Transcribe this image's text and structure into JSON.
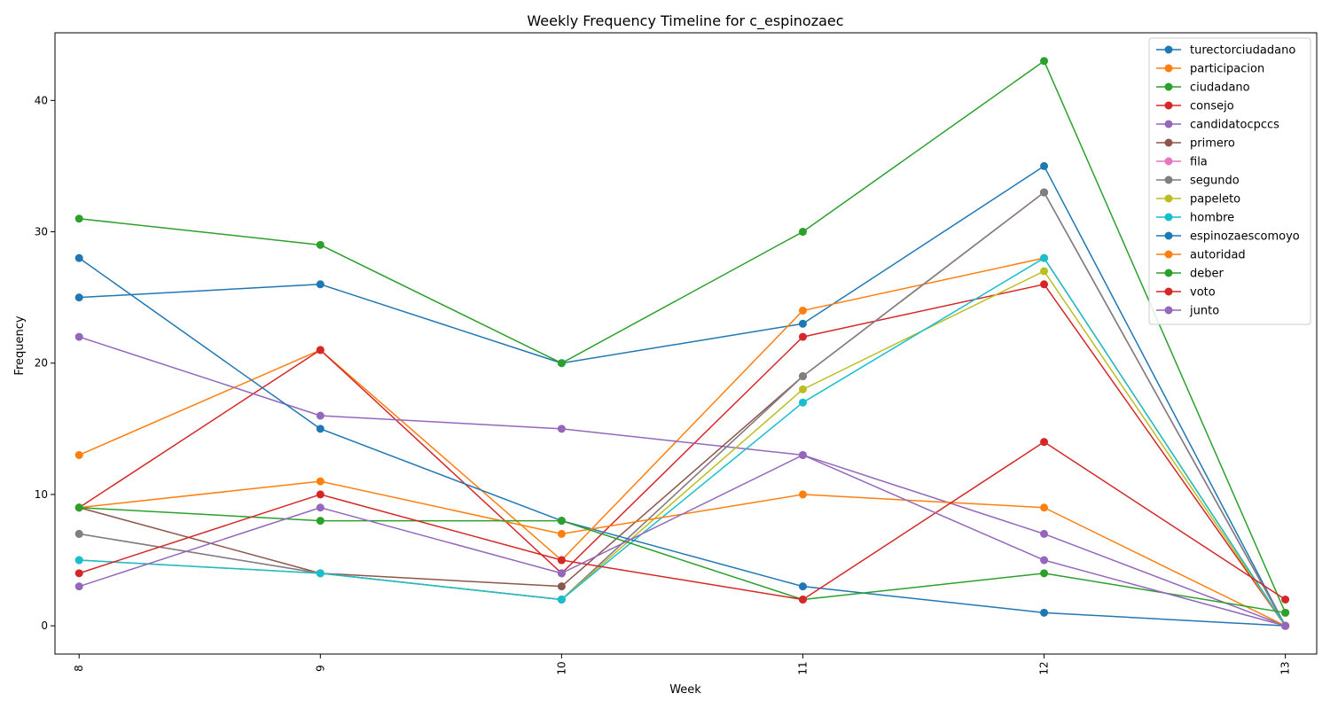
{
  "chart_data": {
    "type": "line",
    "title": "Weekly Frequency Timeline for c_espinozaec",
    "xlabel": "Week",
    "ylabel": "Frequency",
    "x": [
      8,
      9,
      10,
      11,
      12,
      13
    ],
    "xlim": [
      7.9,
      13.13
    ],
    "ylim": [
      -2.15,
      45.15
    ],
    "yticks": [
      0,
      10,
      20,
      30,
      40
    ],
    "grid": false,
    "legend_position": "top-right",
    "series": [
      {
        "name": "turectorciudadano",
        "color": "#1f77b4",
        "values": [
          25,
          26,
          20,
          23,
          35,
          0
        ]
      },
      {
        "name": "participacion",
        "color": "#ff7f0e",
        "values": [
          13,
          21,
          5,
          24,
          28,
          0
        ]
      },
      {
        "name": "ciudadano",
        "color": "#2ca02c",
        "values": [
          31,
          29,
          20,
          30,
          43,
          1
        ]
      },
      {
        "name": "consejo",
        "color": "#d62728",
        "values": [
          9,
          21,
          4,
          22,
          26,
          0
        ]
      },
      {
        "name": "candidatocpccs",
        "color": "#9467bd",
        "values": [
          22,
          16,
          15,
          13,
          7,
          0
        ]
      },
      {
        "name": "primero",
        "color": "#8c564b",
        "values": [
          9,
          4,
          3,
          19,
          33,
          0
        ]
      },
      {
        "name": "fila",
        "color": "#e377c2",
        "values": [
          7,
          4,
          2,
          19,
          33,
          0
        ]
      },
      {
        "name": "segundo",
        "color": "#7f7f7f",
        "values": [
          7,
          4,
          2,
          19,
          33,
          0
        ]
      },
      {
        "name": "papeleto",
        "color": "#bcbd22",
        "values": [
          5,
          4,
          2,
          18,
          27,
          0
        ]
      },
      {
        "name": "hombre",
        "color": "#17becf",
        "values": [
          5,
          4,
          2,
          17,
          28,
          0
        ]
      },
      {
        "name": "espinozaescomoyo",
        "color": "#1f77b4",
        "values": [
          28,
          15,
          8,
          3,
          1,
          0
        ]
      },
      {
        "name": "autoridad",
        "color": "#ff7f0e",
        "values": [
          9,
          11,
          7,
          10,
          9,
          0
        ]
      },
      {
        "name": "deber",
        "color": "#2ca02c",
        "values": [
          9,
          8,
          8,
          2,
          4,
          1
        ]
      },
      {
        "name": "voto",
        "color": "#d62728",
        "values": [
          4,
          10,
          5,
          2,
          14,
          2
        ]
      },
      {
        "name": "junto",
        "color": "#9467bd",
        "values": [
          3,
          9,
          4,
          13,
          5,
          0
        ]
      }
    ]
  }
}
